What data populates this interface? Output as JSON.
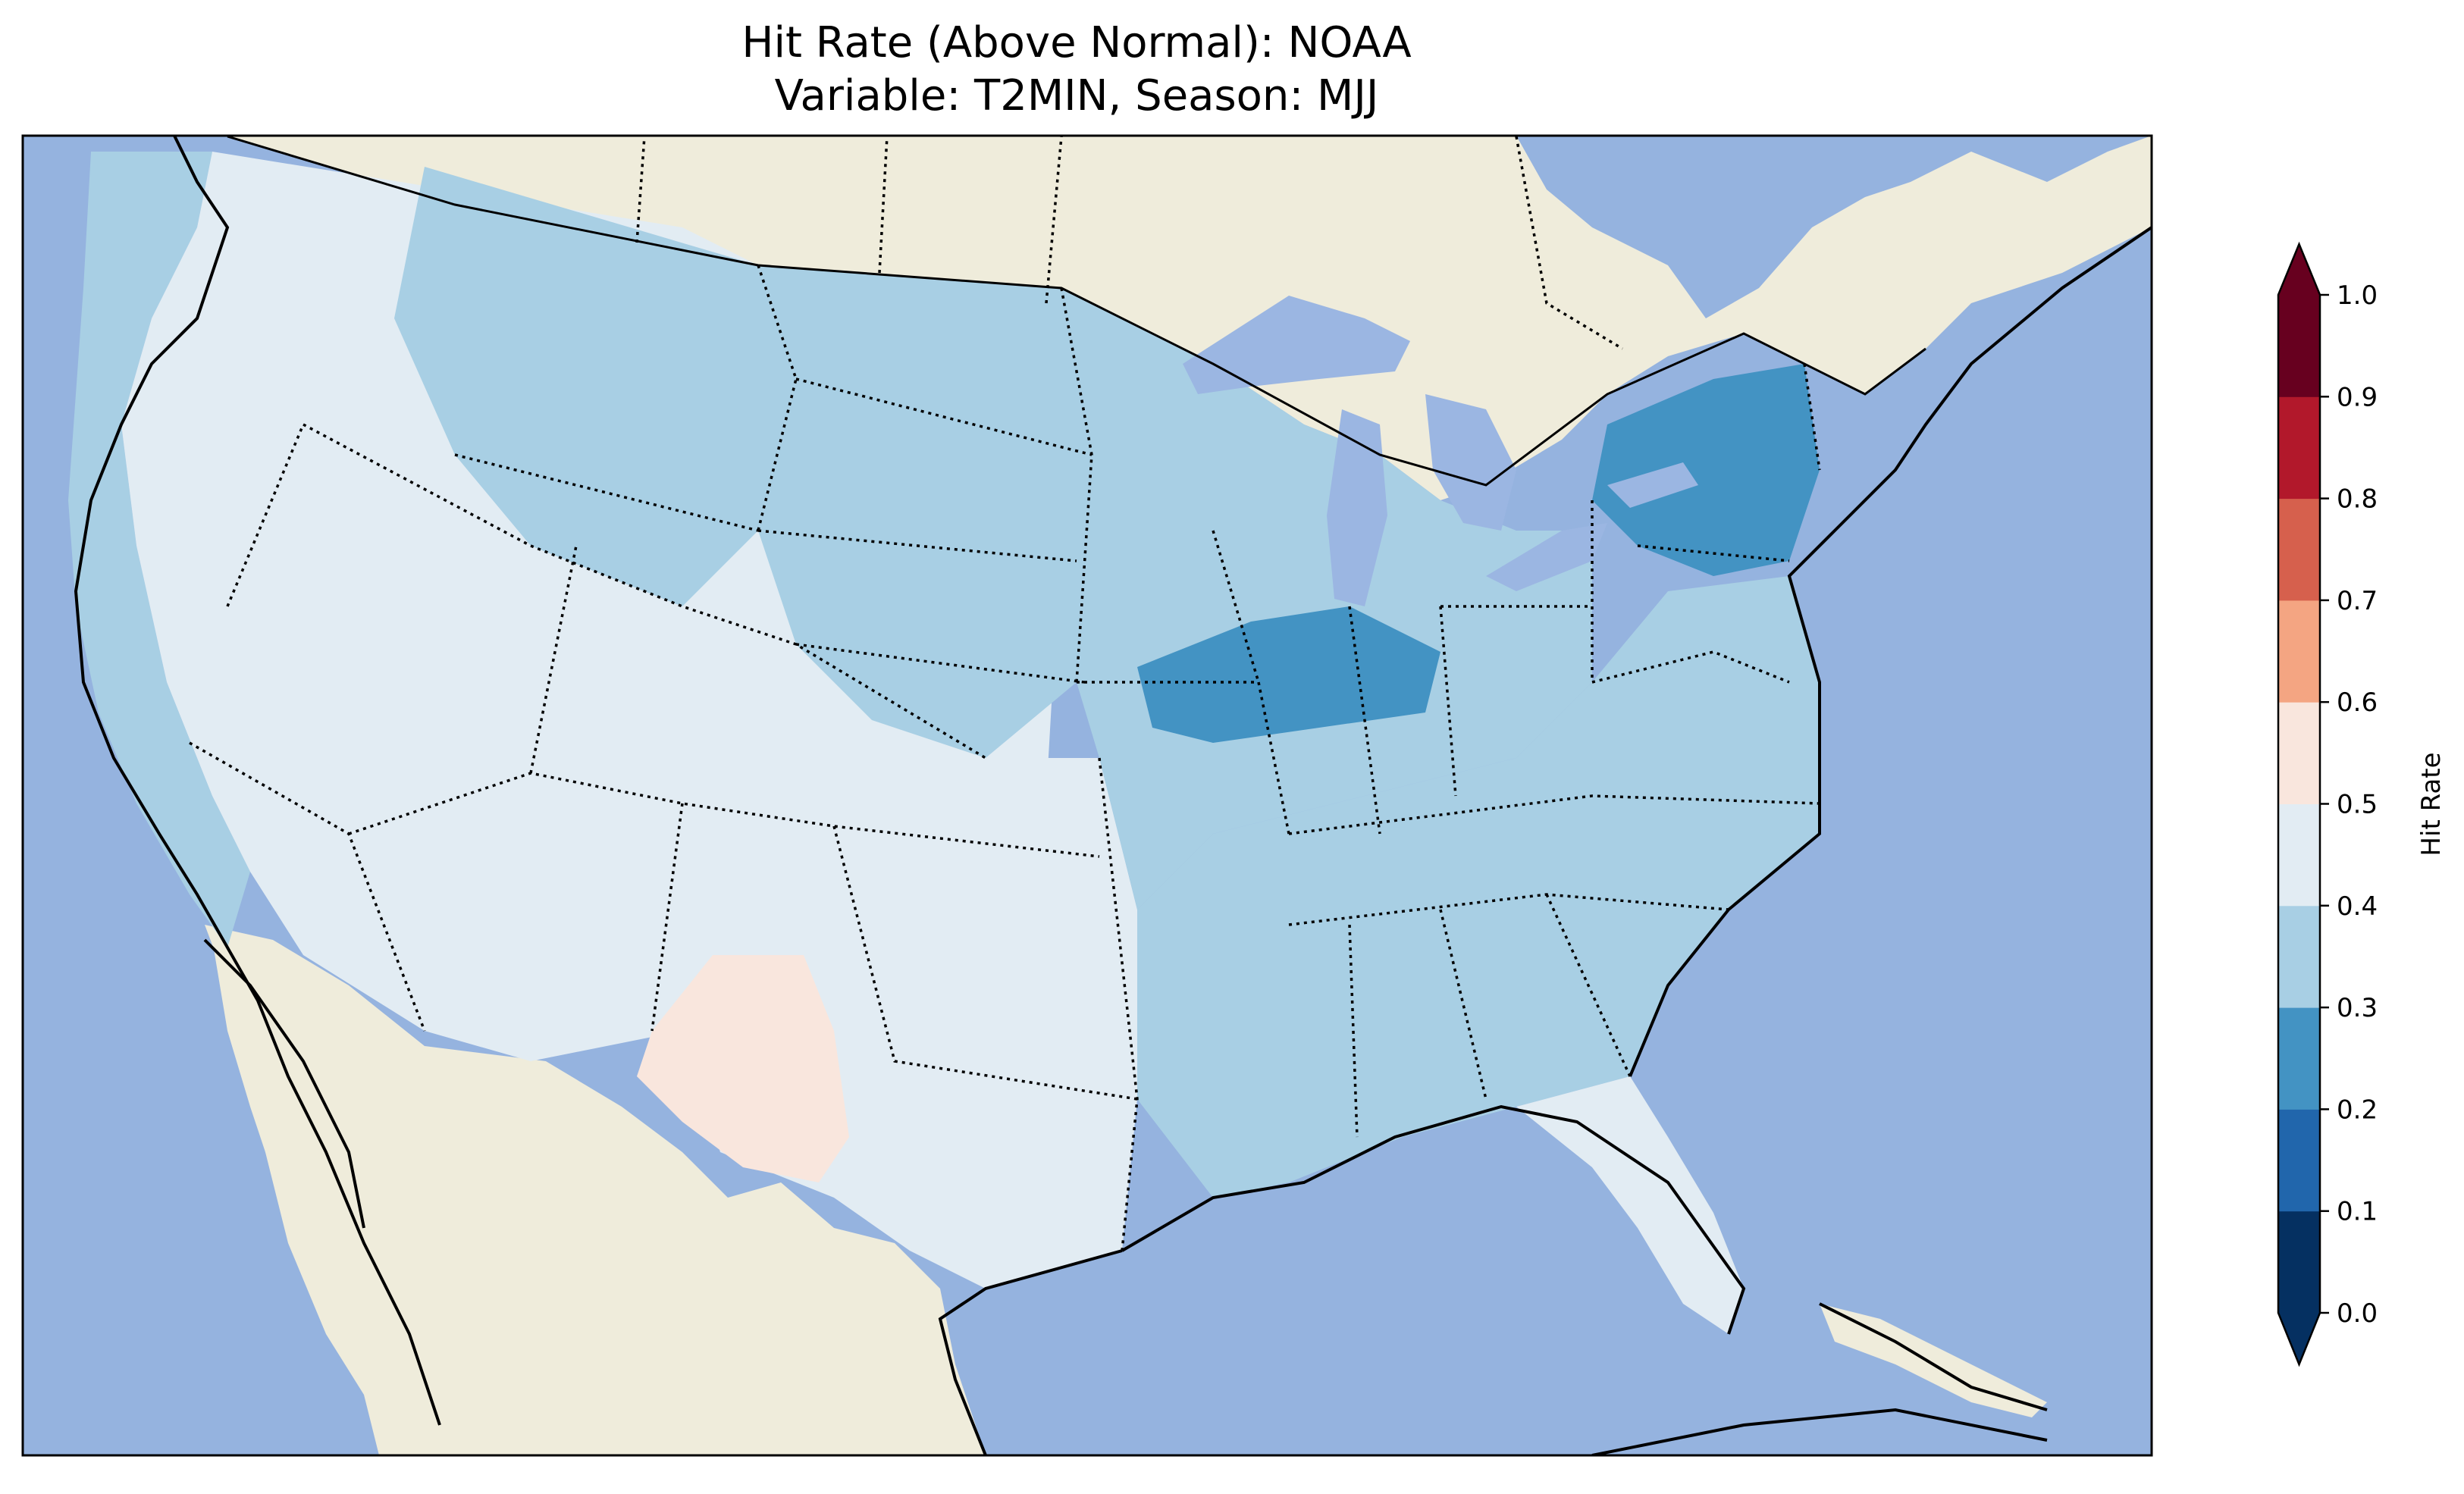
{
  "title": {
    "line1": "Hit Rate (Above Normal): NOAA",
    "line2": "Variable: T2MIN, Season: MJJ"
  },
  "colorbar": {
    "label": "Hit Rate",
    "ticks": [
      "0.0",
      "0.1",
      "0.2",
      "0.3",
      "0.4",
      "0.5",
      "0.6",
      "0.7",
      "0.8",
      "0.9",
      "1.0"
    ],
    "bins": [
      {
        "range": [
          0.0,
          0.1
        ],
        "color": "#053061"
      },
      {
        "range": [
          0.1,
          0.2
        ],
        "color": "#2166ac"
      },
      {
        "range": [
          0.2,
          0.3
        ],
        "color": "#4393c3"
      },
      {
        "range": [
          0.3,
          0.4
        ],
        "color": "#a8cfe4"
      },
      {
        "range": [
          0.4,
          0.5
        ],
        "color": "#e2ecf3"
      },
      {
        "range": [
          0.5,
          0.6
        ],
        "color": "#f9e6dd"
      },
      {
        "range": [
          0.6,
          0.7
        ],
        "color": "#f4a582"
      },
      {
        "range": [
          0.7,
          0.8
        ],
        "color": "#d6604d"
      },
      {
        "range": [
          0.8,
          0.9
        ],
        "color": "#b2182b"
      },
      {
        "range": [
          0.9,
          1.0
        ],
        "color": "#67001f"
      }
    ],
    "extend_min_color": "#053061",
    "extend_max_color": "#67001f"
  },
  "map": {
    "ocean_color": "#95b3df",
    "land_color": "#efecdb",
    "lake_color": "#9bb6e2",
    "regions": [
      {
        "name": "west-coast",
        "value": 0.35
      },
      {
        "name": "interior-west",
        "value": 0.45
      },
      {
        "name": "northern-rockies",
        "value": 0.35
      },
      {
        "name": "northern-plains",
        "value": 0.35
      },
      {
        "name": "southern-plains",
        "value": 0.45
      },
      {
        "name": "west-texas",
        "value": 0.55
      },
      {
        "name": "midwest",
        "value": 0.35
      },
      {
        "name": "illinois-indiana",
        "value": 0.25
      },
      {
        "name": "new-york",
        "value": 0.2
      },
      {
        "name": "southeast",
        "value": 0.35
      },
      {
        "name": "florida",
        "value": 0.45
      }
    ]
  }
}
